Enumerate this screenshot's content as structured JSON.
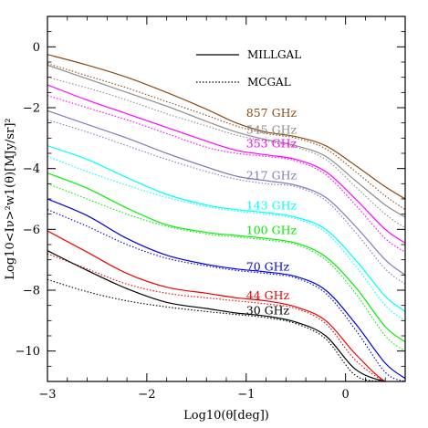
{
  "chart_data": {
    "type": "line",
    "title": "",
    "xlabel": "Log10(θ[deg])",
    "ylabel": "Log10<Iν>²w1(θ)[MJy/sr]²",
    "xlim": [
      -3,
      0.6
    ],
    "ylim": [
      -11,
      1
    ],
    "x_ticks": [
      -3,
      -2,
      -1,
      0
    ],
    "y_ticks": [
      0,
      -2,
      -4,
      -6,
      -8,
      -10
    ],
    "x_tick_labels": [
      "−3",
      "−2",
      "−1",
      "0"
    ],
    "y_tick_labels": [
      "0",
      "−2",
      "−4",
      "−6",
      "−8",
      "−10"
    ],
    "grid": false,
    "legend": {
      "position": "top-right",
      "entries": [
        {
          "name": "MILLGAL",
          "style": "solid"
        },
        {
          "name": "MCGAL",
          "style": "dotted"
        }
      ]
    },
    "series": [
      {
        "name": "857 GHz",
        "color": "#8b4a14",
        "label_at": [
          -1.0,
          -2.3
        ],
        "x": [
          -3,
          -2.6,
          -2.2,
          -1.8,
          -1.4,
          -1.1,
          -0.8,
          -0.5,
          -0.2,
          0.1,
          0.4,
          0.6
        ],
        "solid": [
          -0.25,
          -0.6,
          -1.0,
          -1.5,
          -2.05,
          -2.5,
          -2.8,
          -2.95,
          -3.25,
          -3.9,
          -4.6,
          -5.0
        ],
        "dotted": [
          -0.55,
          -0.95,
          -1.35,
          -1.8,
          -2.25,
          -2.6,
          -2.85,
          -3.0,
          -3.35,
          -4.1,
          -4.9,
          -5.35
        ]
      },
      {
        "name": "545 GHz",
        "color": "#8c8c8c",
        "label_at": [
          -1.0,
          -2.85
        ],
        "x": [
          -3,
          -2.6,
          -2.2,
          -1.8,
          -1.4,
          -1.1,
          -0.8,
          -0.5,
          -0.2,
          0.1,
          0.4,
          0.6
        ],
        "solid": [
          -0.6,
          -1.05,
          -1.5,
          -1.95,
          -2.45,
          -2.8,
          -3.05,
          -3.25,
          -3.6,
          -4.4,
          -5.2,
          -5.6
        ],
        "dotted": [
          -1.0,
          -1.35,
          -1.75,
          -2.2,
          -2.6,
          -2.9,
          -3.1,
          -3.3,
          -3.7,
          -4.6,
          -5.5,
          -5.95
        ]
      },
      {
        "name": "353 GHz",
        "color": "#ff00ff",
        "label_at": [
          -1.0,
          -3.3
        ],
        "x": [
          -3,
          -2.6,
          -2.2,
          -1.8,
          -1.4,
          -1.1,
          -0.8,
          -0.5,
          -0.2,
          0.1,
          0.4,
          0.6
        ],
        "solid": [
          -1.25,
          -1.75,
          -2.2,
          -2.65,
          -3.1,
          -3.4,
          -3.55,
          -3.7,
          -4.1,
          -5.0,
          -6.0,
          -6.45
        ],
        "dotted": [
          -1.6,
          -2.0,
          -2.4,
          -2.85,
          -3.3,
          -3.5,
          -3.6,
          -3.75,
          -4.2,
          -5.2,
          -6.3,
          -6.75
        ]
      },
      {
        "name": "217 GHz",
        "color": "#8877bb",
        "label_at": [
          -1.0,
          -4.35
        ],
        "x": [
          -3,
          -2.6,
          -2.2,
          -1.8,
          -1.4,
          -1.1,
          -0.8,
          -0.5,
          -0.2,
          0.1,
          0.4,
          0.6
        ],
        "solid": [
          -2.1,
          -2.55,
          -3.0,
          -3.5,
          -3.95,
          -4.25,
          -4.4,
          -4.55,
          -4.95,
          -5.9,
          -7.0,
          -7.5
        ],
        "dotted": [
          -2.4,
          -2.8,
          -3.25,
          -3.7,
          -4.1,
          -4.35,
          -4.5,
          -4.6,
          -5.05,
          -6.1,
          -7.3,
          -7.8
        ]
      },
      {
        "name": "143 GHz",
        "color": "#00ffff",
        "label_at": [
          -1.0,
          -5.35
        ],
        "x": [
          -3,
          -2.6,
          -2.2,
          -1.8,
          -1.4,
          -1.1,
          -0.8,
          -0.5,
          -0.2,
          0.1,
          0.4,
          0.6
        ],
        "solid": [
          -3.25,
          -3.7,
          -4.3,
          -4.85,
          -5.2,
          -5.35,
          -5.45,
          -5.6,
          -6.0,
          -7.0,
          -8.2,
          -8.7
        ],
        "dotted": [
          -3.6,
          -4.1,
          -4.55,
          -4.95,
          -5.25,
          -5.4,
          -5.5,
          -5.65,
          -6.1,
          -7.2,
          -8.5,
          -9.0
        ]
      },
      {
        "name": "100 GHz",
        "color": "#00ee00",
        "label_at": [
          -1.0,
          -6.15
        ],
        "x": [
          -3,
          -2.6,
          -2.2,
          -1.8,
          -1.4,
          -1.1,
          -0.8,
          -0.5,
          -0.2,
          0.1,
          0.4,
          0.6
        ],
        "solid": [
          -4.15,
          -4.65,
          -5.3,
          -5.85,
          -6.1,
          -6.2,
          -6.3,
          -6.45,
          -6.9,
          -7.9,
          -9.2,
          -9.7
        ],
        "dotted": [
          -4.5,
          -5.0,
          -5.5,
          -5.9,
          -6.15,
          -6.25,
          -6.35,
          -6.5,
          -7.0,
          -8.1,
          -9.5,
          -10.0
        ]
      },
      {
        "name": "70 GHz",
        "color": "#0000dd",
        "label_at": [
          -1.0,
          -7.35
        ],
        "x": [
          -3,
          -2.6,
          -2.2,
          -1.8,
          -1.4,
          -1.1,
          -0.8,
          -0.5,
          -0.2,
          0.1,
          0.4,
          0.6
        ],
        "solid": [
          -5.0,
          -5.55,
          -6.3,
          -6.85,
          -7.15,
          -7.3,
          -7.4,
          -7.55,
          -8.0,
          -9.1,
          -10.4,
          -10.9
        ],
        "dotted": [
          -5.35,
          -5.9,
          -6.5,
          -6.95,
          -7.2,
          -7.35,
          -7.45,
          -7.6,
          -8.1,
          -9.3,
          -10.7,
          -11.0
        ]
      },
      {
        "name": "44 GHz",
        "color": "#ee0000",
        "label_at": [
          -1.0,
          -8.3
        ],
        "x": [
          -3,
          -2.6,
          -2.2,
          -1.8,
          -1.4,
          -1.1,
          -0.8,
          -0.5,
          -0.2,
          0.1,
          0.4,
          0.6
        ],
        "solid": [
          -6.05,
          -6.75,
          -7.45,
          -7.9,
          -8.1,
          -8.25,
          -8.35,
          -8.55,
          -9.0,
          -10.1,
          -11.0,
          -11.0
        ],
        "dotted": [
          -6.8,
          -7.3,
          -7.8,
          -8.1,
          -8.25,
          -8.35,
          -8.45,
          -8.6,
          -9.1,
          -10.3,
          -11.0,
          -11.0
        ]
      },
      {
        "name": "30 GHz",
        "color": "#000000",
        "label_at": [
          -1.0,
          -8.8
        ],
        "x": [
          -3,
          -2.6,
          -2.2,
          -1.8,
          -1.4,
          -1.1,
          -0.8,
          -0.5,
          -0.2,
          0.1,
          0.4,
          0.6
        ],
        "solid": [
          -6.7,
          -7.35,
          -7.95,
          -8.4,
          -8.6,
          -8.75,
          -8.85,
          -9.05,
          -9.5,
          -10.6,
          -11.0,
          -11.0
        ],
        "dotted": [
          -7.65,
          -8.05,
          -8.35,
          -8.55,
          -8.7,
          -8.8,
          -8.9,
          -9.1,
          -9.6,
          -10.8,
          -11.0,
          -11.0
        ]
      }
    ]
  }
}
